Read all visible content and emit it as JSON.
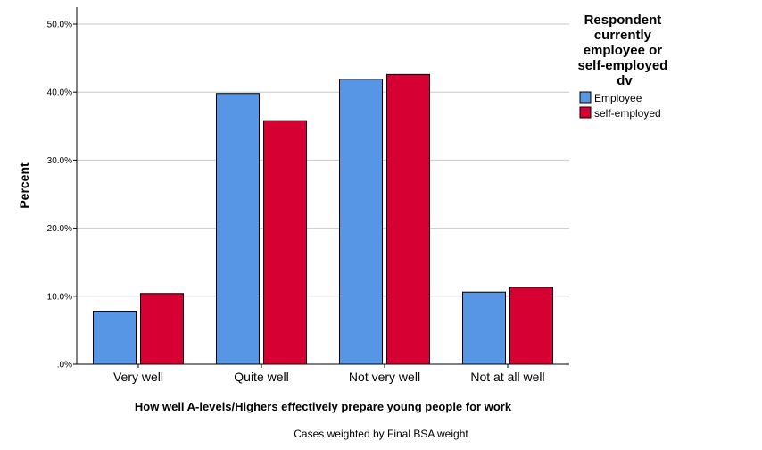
{
  "chart_data": {
    "type": "bar",
    "title": "",
    "xlabel": "How well A-levels/Highers effectively prepare young people for work",
    "ylabel": "Percent",
    "ylim": [
      0,
      50
    ],
    "yticks": [
      0,
      10,
      20,
      30,
      40,
      50
    ],
    "ytick_labels": [
      ".0%",
      "10.0%",
      "20.0%",
      "30.0%",
      "40.0%",
      "50.0%"
    ],
    "grid": true,
    "categories": [
      "Very well",
      "Quite well",
      "Not very well",
      "Not at all well"
    ],
    "series": [
      {
        "name": "Employee",
        "color": "#5796e5",
        "values": [
          7.8,
          39.8,
          41.9,
          10.6
        ]
      },
      {
        "name": "self-employed",
        "color": "#d70033",
        "values": [
          10.4,
          35.8,
          42.6,
          11.3
        ]
      }
    ],
    "legend": {
      "title_lines": [
        "Respondent",
        "currently",
        "employee or",
        "self-employed",
        "dv"
      ],
      "position": "right"
    },
    "footnote": "Cases weighted by Final BSA weight"
  }
}
